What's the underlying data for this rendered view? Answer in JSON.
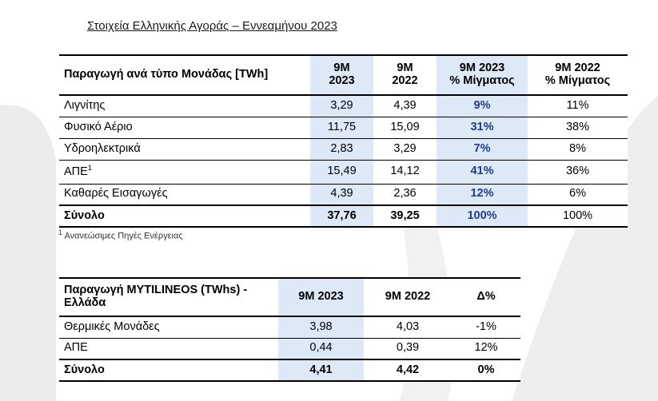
{
  "title": "Στοιχεία Ελληνικής Αγοράς – Εννεαμήνου 2023",
  "table1": {
    "header": {
      "label": "Παραγωγή ανά τύπο Μονάδας [TWh]",
      "col1": [
        "9M",
        "2023"
      ],
      "col2": [
        "9M",
        "2022"
      ],
      "col3": [
        "9M 2023",
        "% Μίγματος"
      ],
      "col4": [
        "9M 2022",
        "% Μίγματος"
      ]
    },
    "rows": [
      {
        "label": "Λιγνίτης",
        "sup": "",
        "v1": "3,29",
        "v2": "4,39",
        "v3": "9%",
        "v4": "11%"
      },
      {
        "label": "Φυσικό Αέριο",
        "sup": "",
        "v1": "11,75",
        "v2": "15,09",
        "v3": "31%",
        "v4": "38%"
      },
      {
        "label": "Υδροηλεκτρικά",
        "sup": "",
        "v1": "2,83",
        "v2": "3,29",
        "v3": "7%",
        "v4": "8%"
      },
      {
        "label": "ΑΠΕ",
        "sup": "1",
        "v1": "15,49",
        "v2": "14,12",
        "v3": "41%",
        "v4": "36%"
      },
      {
        "label": "Καθαρές Εισαγωγές",
        "sup": "",
        "v1": "4,39",
        "v2": "2,36",
        "v3": "12%",
        "v4": "6%"
      }
    ],
    "total": {
      "label": "Σύνολο",
      "v1": "37,76",
      "v2": "39,25",
      "v3": "100%",
      "v4": "100%"
    }
  },
  "footnote": {
    "sup": "1",
    "text": "Ανανεώσιμες Πηγές Ενέργειας"
  },
  "table2": {
    "header": {
      "label": [
        "Παραγωγή MYTILINEOS (TWhs) -",
        "Ελλάδα"
      ],
      "col1": "9M 2023",
      "col2": "9M 2022",
      "col3": "Δ%"
    },
    "rows": [
      {
        "label": "Θερμικές Μονάδες",
        "v1": "3,98",
        "v2": "4,03",
        "v3": "-1%"
      },
      {
        "label": "ΑΠΕ",
        "v1": "0,44",
        "v2": "0,39",
        "v3": "12%"
      }
    ],
    "total": {
      "label": "Σύνολο",
      "v1": "4,41",
      "v2": "4,42",
      "v3": "0%"
    }
  },
  "colors": {
    "highlight": "#dde9f6",
    "value_blue": "#1f3b8f",
    "swoosh": "#ededed"
  }
}
